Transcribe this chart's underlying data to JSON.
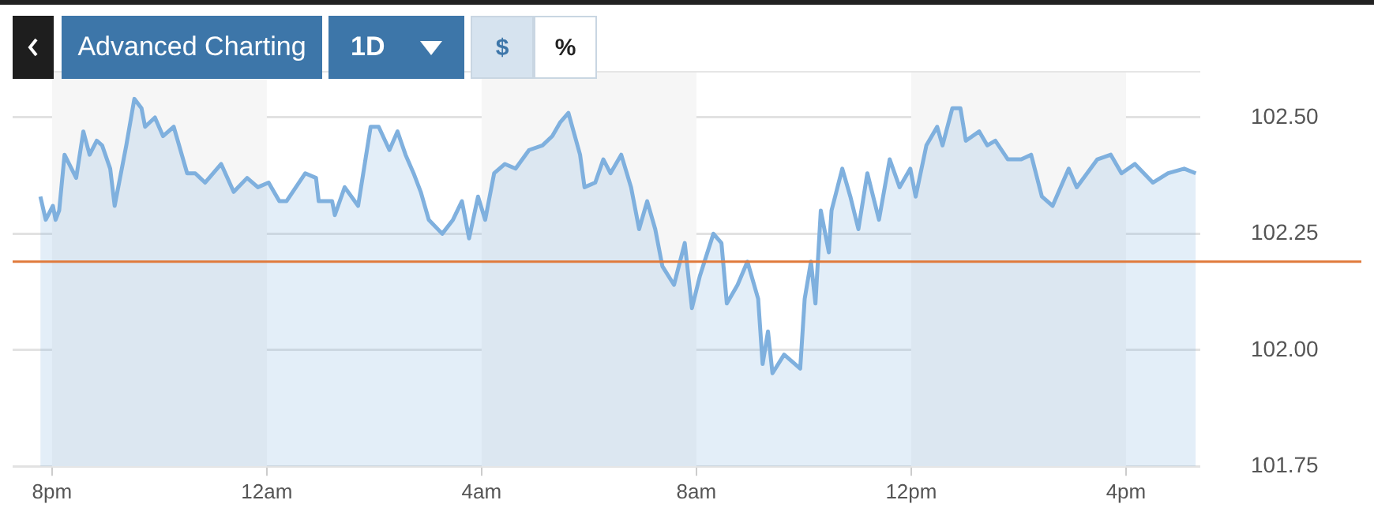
{
  "chart_data": {
    "type": "area",
    "annotations": [
      "Advanced Charting",
      "1D",
      "$",
      "%"
    ],
    "x": [
      "--01-01T19:47",
      "--01-01T19:53",
      "--01-01T20:01",
      "--01-01T20:04",
      "--01-01T20:08",
      "--01-01T20:14",
      "--01-01T20:27",
      "--01-01T20:35",
      "--01-01T20:42",
      "--01-01T20:50",
      "--01-01T20:56",
      "--01-01T21:05",
      "--01-01T21:10",
      "--01-01T21:23",
      "--01-01T21:32",
      "--01-01T21:40",
      "--01-01T21:44",
      "--01-01T21:55",
      "--01-01T22:04",
      "--01-01T22:16",
      "--01-01T22:31",
      "--01-01T22:40",
      "--01-01T22:51",
      "--01-01T23:09",
      "--01-01T23:23",
      "--01-01T23:38",
      "--01-01T23:50",
      "--01-02T00:02",
      "--01-02T00:14",
      "--01-02T00:22",
      "--01-02T00:43",
      "--01-02T00:55",
      "--01-02T00:58",
      "--01-02T01:13",
      "--01-02T01:16",
      "--01-02T01:27",
      "--01-02T01:42",
      "--01-02T01:56",
      "--01-02T02:05",
      "--01-02T02:17",
      "--01-02T02:26",
      "--01-02T02:35",
      "--01-02T02:44",
      "--01-02T02:52",
      "--01-02T03:01",
      "--01-02T03:16",
      "--01-02T03:28",
      "--01-02T03:38",
      "--01-02T03:46",
      "--01-02T03:56",
      "--01-02T04:04",
      "--01-02T04:14",
      "--01-02T04:26",
      "--01-02T04:38",
      "--01-02T04:53",
      "--01-02T05:08",
      "--01-02T05:19",
      "--01-02T05:28",
      "--01-02T05:37",
      "--01-02T05:50",
      "--01-02T05:55",
      "--01-02T06:07",
      "--01-02T06:16",
      "--01-02T06:24",
      "--01-02T06:36",
      "--01-02T06:47",
      "--01-02T06:56",
      "--01-02T07:05",
      "--01-02T07:14",
      "--01-02T07:22",
      "--01-02T07:35",
      "--01-02T07:47",
      "--01-02T07:55",
      "--01-02T08:04",
      "--01-02T08:19",
      "--01-02T08:28",
      "--01-02T08:34",
      "--01-02T08:46",
      "--01-02T08:57",
      "--01-02T09:09",
      "--01-02T09:14",
      "--01-02T09:20",
      "--01-02T09:25",
      "--01-02T09:38",
      "--01-02T09:56",
      "--01-02T10:01",
      "--01-02T10:08",
      "--01-02T10:13",
      "--01-02T10:19",
      "--01-02T10:28",
      "--01-02T10:31",
      "--01-02T10:43",
      "--01-02T10:52",
      "--01-02T11:01",
      "--01-02T11:11",
      "--01-02T11:24",
      "--01-02T11:36",
      "--01-02T11:47",
      "--01-02T11:59",
      "--01-02T12:05",
      "--01-02T12:17",
      "--01-02T12:29",
      "--01-02T12:35",
      "--01-02T12:46",
      "--01-02T12:55",
      "--01-02T13:01",
      "--01-02T13:16",
      "--01-02T13:25",
      "--01-02T13:34",
      "--01-02T13:48",
      "--01-02T14:03",
      "--01-02T14:14",
      "--01-02T14:26",
      "--01-02T14:38",
      "--01-02T14:56",
      "--01-02T15:05",
      "--01-02T15:28",
      "--01-02T15:43",
      "--01-02T15:55",
      "--01-02T16:10",
      "--01-02T16:30",
      "--01-02T16:47",
      "--01-02T17:05",
      "--01-02T17:18"
    ],
    "series": [
      {
        "color": "#7fb0de",
        "values": [
          102.33,
          102.28,
          102.31,
          102.28,
          102.3,
          102.42,
          102.37,
          102.47,
          102.42,
          102.45,
          102.44,
          102.39,
          102.31,
          102.44,
          102.54,
          102.52,
          102.48,
          102.5,
          102.46,
          102.48,
          102.38,
          102.38,
          102.36,
          102.4,
          102.34,
          102.37,
          102.35,
          102.36,
          102.32,
          102.32,
          102.38,
          102.37,
          102.32,
          102.32,
          102.29,
          102.35,
          102.31,
          102.48,
          102.48,
          102.43,
          102.47,
          102.42,
          102.38,
          102.34,
          102.28,
          102.25,
          102.28,
          102.32,
          102.24,
          102.33,
          102.28,
          102.38,
          102.4,
          102.39,
          102.43,
          102.44,
          102.46,
          102.49,
          102.51,
          102.42,
          102.35,
          102.36,
          102.41,
          102.38,
          102.42,
          102.35,
          102.26,
          102.32,
          102.26,
          102.18,
          102.14,
          102.23,
          102.09,
          102.16,
          102.25,
          102.23,
          102.1,
          102.14,
          102.19,
          102.11,
          101.97,
          102.04,
          101.95,
          101.99,
          101.96,
          102.11,
          102.19,
          102.1,
          102.3,
          102.21,
          102.3,
          102.39,
          102.33,
          102.26,
          102.38,
          102.28,
          102.41,
          102.35,
          102.39,
          102.33,
          102.44,
          102.48,
          102.44,
          102.52,
          102.52,
          102.45,
          102.47,
          102.44,
          102.45,
          102.41,
          102.41,
          102.42,
          102.33,
          102.31,
          102.39,
          102.35,
          102.41,
          102.42,
          102.38,
          102.4,
          102.36,
          102.38,
          102.39,
          102.38
        ]
      }
    ],
    "xlim": [
      "--01-01T19:16",
      "--01-02T17:23"
    ],
    "xticks": [
      {
        "value": "--01-01T20:00",
        "label": "8pm"
      },
      {
        "value": "--01-02T00:00",
        "label": "12am"
      },
      {
        "value": "--01-02T04:00",
        "label": "4am"
      },
      {
        "value": "--01-02T08:00",
        "label": "8am"
      },
      {
        "value": "--01-02T12:00",
        "label": "12pm"
      },
      {
        "value": "--01-02T16:00",
        "label": "4pm"
      }
    ],
    "ylim": [
      101.75,
      102.6
    ],
    "yticks": [
      101.75,
      {
        "value": 102,
        "label": "102.00"
      },
      102.25,
      {
        "value": 102.5,
        "label": "102.50"
      }
    ],
    "grid": "y",
    "ref_lines": [
      {
        "axis": "y",
        "value": 102.19,
        "color": "#e07a3c"
      }
    ],
    "bands": [
      {
        "axis": "x",
        "from": "--01-01T20:00",
        "to": "--01-02T00:00",
        "color": "#f6f6f6"
      },
      {
        "axis": "x",
        "from": "--01-02T04:00",
        "to": "--01-02T08:00",
        "color": "#f6f6f6"
      },
      {
        "axis": "x",
        "from": "--01-02T12:00",
        "to": "--01-02T16:00",
        "color": "#f6f6f6"
      }
    ]
  }
}
